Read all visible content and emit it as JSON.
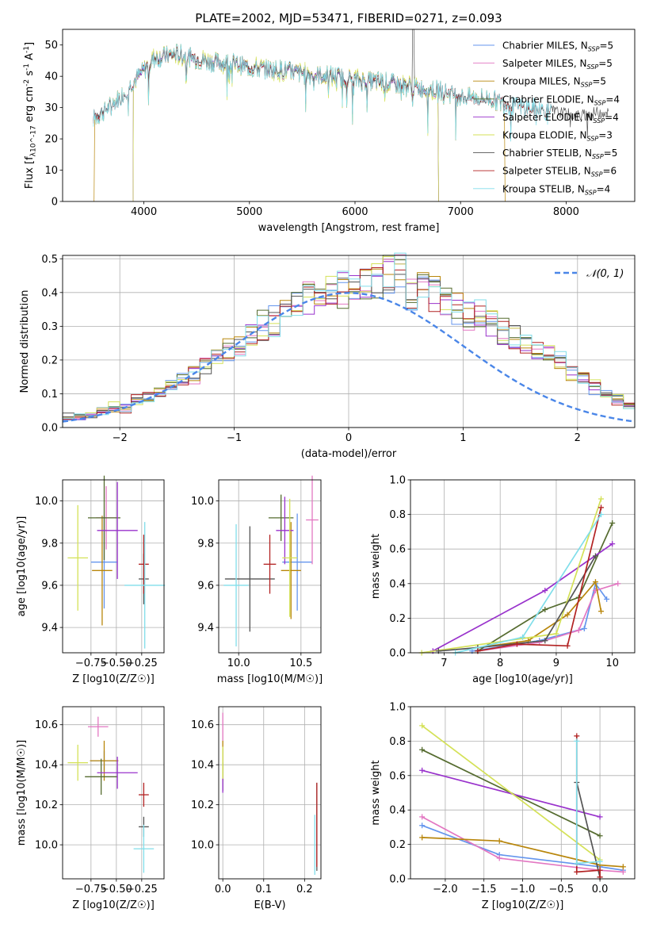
{
  "series_colors": [
    "#6495ed",
    "#e377c2",
    "#b8860b",
    "#556b2f",
    "#9932cc",
    "#d4e157",
    "#555555",
    "#b22222",
    "#80deea"
  ],
  "chart_data": [
    {
      "id": "spectrum",
      "type": "line",
      "title": "PLATE=2002, MJD=53471, FIBERID=0271, z=0.093",
      "xlabel": "wavelength [Angstrom, rest frame]",
      "ylabel": "Flux [f_λ10^-17 erg cm^-2 s^-1 A^-1]",
      "xlim": [
        3230,
        8650
      ],
      "ylim": [
        0,
        55
      ],
      "xticks": [
        4000,
        5000,
        6000,
        7000,
        8000
      ],
      "yticks": [
        0,
        10,
        20,
        30,
        40,
        50
      ],
      "grid": false,
      "legend_position": "top-right",
      "continuum_x": [
        3500,
        3800,
        4000,
        4100,
        4300,
        4600,
        5000,
        5500,
        6000,
        6500,
        7000,
        7500,
        7900
      ],
      "continuum_y": [
        26,
        34,
        42,
        46,
        47,
        45,
        43,
        41,
        39,
        37,
        34,
        31,
        28
      ],
      "series": [
        {
          "name": "Chabrier MILES",
          "nssp": "5",
          "start": 3530,
          "end": 7420,
          "dropout": false
        },
        {
          "name": "Salpeter MILES",
          "nssp": "5",
          "start": 3530,
          "end": 7420,
          "dropout": false
        },
        {
          "name": "Kroupa MILES",
          "nssp": "5",
          "start": 3530,
          "end": 7420,
          "dropout": true
        },
        {
          "name": "Chabrier ELODIE",
          "nssp": "4",
          "start": 3900,
          "end": 6790,
          "dropout": true
        },
        {
          "name": "Salpeter ELODIE",
          "nssp": "4",
          "start": 3900,
          "end": 6790,
          "dropout": true
        },
        {
          "name": "Kroupa ELODIE",
          "nssp": "3",
          "start": 3900,
          "end": 6790,
          "dropout": true
        },
        {
          "name": "Chabrier STELIB",
          "nssp": "5",
          "start": 3520,
          "end": 8400,
          "dropout": false
        },
        {
          "name": "Salpeter STELIB",
          "nssp": "6",
          "start": 3520,
          "end": 7860,
          "dropout": false
        },
        {
          "name": "Kroupa STELIB",
          "nssp": "4",
          "start": 3520,
          "end": 7860,
          "dropout": false
        }
      ]
    },
    {
      "id": "residuals",
      "type": "bar",
      "xlabel": "(data-model)/error",
      "ylabel": "Normed distribution",
      "xlim": [
        -2.5,
        2.5
      ],
      "ylim": [
        0,
        0.51
      ],
      "xticks": [
        -2,
        -1,
        0,
        1,
        2
      ],
      "yticks": [
        0.0,
        0.1,
        0.2,
        0.3,
        0.4,
        0.5
      ],
      "grid": true,
      "bin_width": 0.1,
      "legend_position": "top-right",
      "legend_label": "𝒩(0, 1)",
      "overall_values": [
        0.03,
        0.03,
        0.04,
        0.05,
        0.06,
        0.06,
        0.08,
        0.09,
        0.1,
        0.12,
        0.14,
        0.16,
        0.19,
        0.21,
        0.23,
        0.25,
        0.27,
        0.3,
        0.32,
        0.34,
        0.36,
        0.38,
        0.39,
        0.4,
        0.41,
        0.42,
        0.43,
        0.44,
        0.45,
        0.45,
        0.4,
        0.42,
        0.4,
        0.38,
        0.36,
        0.34,
        0.33,
        0.31,
        0.29,
        0.27,
        0.25,
        0.23,
        0.21,
        0.19,
        0.16,
        0.14,
        0.12,
        0.1,
        0.08,
        0.06
      ]
    },
    {
      "id": "z-age",
      "type": "scatter",
      "xlabel": "Z [log10(Z/Z☉)]",
      "ylabel": "age  [log10(age/yr)]",
      "xlim": [
        -1.03,
        -0.03
      ],
      "ylim": [
        9.28,
        10.1
      ],
      "xticks": [
        -0.75,
        -0.5,
        -0.25
      ],
      "xticklabels": [
        "−0.75",
        "−0.50",
        "−0.25"
      ],
      "yticks": [
        9.4,
        9.6,
        9.8,
        10.0
      ],
      "grid": true,
      "points": [
        {
          "x": -0.62,
          "y": 9.71,
          "xerr": 0.13,
          "yerr": 0.22,
          "series": 0
        },
        {
          "x": -0.6,
          "y": 9.92,
          "xerr": 0.1,
          "yerr": 0.15,
          "series": 1
        },
        {
          "x": -0.64,
          "y": 9.67,
          "xerr": 0.1,
          "yerr": 0.26,
          "series": 2
        },
        {
          "x": -0.62,
          "y": 9.92,
          "xerr": 0.16,
          "yerr": 0.2,
          "series": 3
        },
        {
          "x": -0.49,
          "y": 9.86,
          "xerr": 0.2,
          "yerr": 0.23,
          "series": 4
        },
        {
          "x": -0.88,
          "y": 9.73,
          "xerr": 0.1,
          "yerr": 0.25,
          "series": 5
        },
        {
          "x": -0.23,
          "y": 9.63,
          "xerr": 0.05,
          "yerr": 0.12,
          "series": 6
        },
        {
          "x": -0.23,
          "y": 9.7,
          "xerr": 0.05,
          "yerr": 0.14,
          "series": 7
        },
        {
          "x": -0.22,
          "y": 9.6,
          "xerr": 0.2,
          "yerr": 0.3,
          "series": 8
        }
      ]
    },
    {
      "id": "mass-age",
      "type": "scatter",
      "xlabel": "mass [log10(M/M☉)]",
      "ylabel": "",
      "xlim": [
        9.84,
        10.66
      ],
      "ylim": [
        9.28,
        10.1
      ],
      "xticks": [
        10.0,
        10.5
      ],
      "xticklabels": [
        "10.0",
        "10.5"
      ],
      "yticks": [
        9.4,
        9.6,
        9.8,
        10.0
      ],
      "grid": true,
      "points": [
        {
          "x": 10.47,
          "y": 9.71,
          "xerr": 0.12,
          "yerr": 0.23,
          "series": 0
        },
        {
          "x": 10.59,
          "y": 9.91,
          "xerr": 0.05,
          "yerr": 0.21,
          "series": 1
        },
        {
          "x": 10.42,
          "y": 9.67,
          "xerr": 0.08,
          "yerr": 0.23,
          "series": 2
        },
        {
          "x": 10.34,
          "y": 9.92,
          "xerr": 0.1,
          "yerr": 0.11,
          "series": 3
        },
        {
          "x": 10.37,
          "y": 9.86,
          "xerr": 0.07,
          "yerr": 0.16,
          "series": 4
        },
        {
          "x": 10.41,
          "y": 9.73,
          "xerr": 0.06,
          "yerr": 0.28,
          "series": 5
        },
        {
          "x": 10.09,
          "y": 9.63,
          "xerr": 0.2,
          "yerr": 0.25,
          "series": 6
        },
        {
          "x": 10.25,
          "y": 9.7,
          "xerr": 0.05,
          "yerr": 0.14,
          "series": 7
        },
        {
          "x": 9.98,
          "y": 9.6,
          "xerr": 0.1,
          "yerr": 0.29,
          "series": 8
        }
      ]
    },
    {
      "id": "age-weight",
      "type": "line",
      "xlabel": "age  [log10(age/yr)]",
      "ylabel": "mass weight",
      "xlim": [
        6.4,
        10.4
      ],
      "ylim": [
        0,
        1.0
      ],
      "xticks": [
        7,
        8,
        9,
        10
      ],
      "yticks": [
        0.0,
        0.2,
        0.4,
        0.6,
        0.8,
        1.0
      ],
      "grid": true,
      "series": [
        {
          "series": 0,
          "x": [
            7.5,
            8.7,
            9.5,
            9.7,
            9.9
          ],
          "y": [
            0.01,
            0.07,
            0.14,
            0.4,
            0.31
          ]
        },
        {
          "series": 1,
          "x": [
            7.6,
            8.7,
            9.4,
            9.7,
            10.1
          ],
          "y": [
            0.01,
            0.06,
            0.13,
            0.36,
            0.4
          ]
        },
        {
          "series": 2,
          "x": [
            7.6,
            8.5,
            9.2,
            9.7,
            9.8
          ],
          "y": [
            0.03,
            0.07,
            0.22,
            0.41,
            0.24
          ]
        },
        {
          "series": 3,
          "x": [
            7.6,
            8.8,
            9.4,
            10.0
          ],
          "y": [
            0.01,
            0.25,
            0.32,
            0.75
          ]
        },
        {
          "series": 4,
          "x": [
            6.8,
            8.8,
            10.0
          ],
          "y": [
            0.01,
            0.36,
            0.63
          ]
        },
        {
          "series": 5,
          "x": [
            6.6,
            9.0,
            9.8
          ],
          "y": [
            0.0,
            0.11,
            0.89
          ]
        },
        {
          "series": 6,
          "x": [
            6.9,
            7.6,
            8.8,
            9.7
          ],
          "y": [
            0.01,
            0.03,
            0.07,
            0.56
          ]
        },
        {
          "series": 7,
          "x": [
            7.6,
            8.3,
            9.2,
            9.8
          ],
          "y": [
            0.01,
            0.05,
            0.04,
            0.84
          ]
        },
        {
          "series": 8,
          "x": [
            7.2,
            8.4,
            9.8
          ],
          "y": [
            0.0,
            0.09,
            0.8
          ]
        }
      ]
    },
    {
      "id": "z-mass",
      "type": "scatter",
      "xlabel": "Z [log10(Z/Z☉)]",
      "ylabel": "mass [log10(M/M☉)]",
      "xlim": [
        -1.03,
        -0.03
      ],
      "ylim": [
        9.83,
        10.69
      ],
      "xticks": [
        -0.75,
        -0.5,
        -0.25
      ],
      "xticklabels": [
        "−0.75",
        "−0.50",
        "−0.25"
      ],
      "yticks": [
        10.0,
        10.2,
        10.4,
        10.6
      ],
      "grid": true,
      "points": [
        {
          "x": -0.62,
          "y": 10.42,
          "xerr": 0.13,
          "yerr": 0.05,
          "series": 0
        },
        {
          "x": -0.68,
          "y": 10.59,
          "xerr": 0.1,
          "yerr": 0.05,
          "series": 1
        },
        {
          "x": -0.62,
          "y": 10.42,
          "xerr": 0.14,
          "yerr": 0.1,
          "series": 2
        },
        {
          "x": -0.65,
          "y": 10.34,
          "xerr": 0.16,
          "yerr": 0.09,
          "series": 3
        },
        {
          "x": -0.49,
          "y": 10.36,
          "xerr": 0.2,
          "yerr": 0.08,
          "series": 4
        },
        {
          "x": -0.88,
          "y": 10.41,
          "xerr": 0.1,
          "yerr": 0.09,
          "series": 5
        },
        {
          "x": -0.23,
          "y": 10.09,
          "xerr": 0.05,
          "yerr": 0.05,
          "series": 6
        },
        {
          "x": -0.23,
          "y": 10.25,
          "xerr": 0.05,
          "yerr": 0.06,
          "series": 7
        },
        {
          "x": -0.23,
          "y": 9.98,
          "xerr": 0.1,
          "yerr": 0.12,
          "series": 8
        }
      ]
    },
    {
      "id": "ebv-mass",
      "type": "scatter",
      "xlabel": "E(B-V)",
      "ylabel": "",
      "xlim": [
        -0.01,
        0.24
      ],
      "ylim": [
        9.83,
        10.69
      ],
      "xticks": [
        0.0,
        0.1,
        0.2
      ],
      "xticklabels": [
        "0.0",
        "0.1",
        "0.2"
      ],
      "yticks": [
        10.0,
        10.2,
        10.4,
        10.6
      ],
      "grid": true,
      "points": [
        {
          "x": 0.0,
          "y": 10.42,
          "xerr": 0.0,
          "yerr": 0.06,
          "series": 0
        },
        {
          "x": 0.0,
          "y": 10.59,
          "xerr": 0.0,
          "yerr": 0.07,
          "series": 1
        },
        {
          "x": 0.0,
          "y": 10.42,
          "xerr": 0.0,
          "yerr": 0.1,
          "series": 2
        },
        {
          "x": 0.0,
          "y": 10.34,
          "xerr": 0.0,
          "yerr": 0.07,
          "series": 3
        },
        {
          "x": 0.0,
          "y": 10.3,
          "xerr": 0.0,
          "yerr": 0.04,
          "series": 4
        },
        {
          "x": 0.0,
          "y": 10.41,
          "xerr": 0.0,
          "yerr": 0.08,
          "series": 5
        },
        {
          "x": 0.23,
          "y": 10.09,
          "xerr": 0.0,
          "yerr": 0.22,
          "series": 6
        },
        {
          "x": 0.23,
          "y": 10.1,
          "xerr": 0.0,
          "yerr": 0.21,
          "series": 7
        },
        {
          "x": 0.225,
          "y": 10.0,
          "xerr": 0.0,
          "yerr": 0.15,
          "series": 8
        }
      ]
    },
    {
      "id": "z-weight",
      "type": "line",
      "xlabel": "Z [log10(Z/Z☉)]",
      "ylabel": "mass weight",
      "xlim": [
        -2.45,
        0.45
      ],
      "ylim": [
        0,
        1.0
      ],
      "xticks": [
        -2.0,
        -1.5,
        -1.0,
        -0.5,
        0.0
      ],
      "xticklabels": [
        "−2.0",
        "−1.5",
        "−1.0",
        "−0.5",
        "0.0"
      ],
      "yticks": [
        0.0,
        0.2,
        0.4,
        0.6,
        0.8,
        1.0
      ],
      "grid": true,
      "series": [
        {
          "series": 0,
          "x": [
            -2.3,
            -1.3,
            0.0,
            0.3
          ],
          "y": [
            0.31,
            0.14,
            0.07,
            0.05
          ]
        },
        {
          "series": 1,
          "x": [
            -2.3,
            -1.3,
            0.0,
            0.3
          ],
          "y": [
            0.36,
            0.12,
            0.05,
            0.04
          ]
        },
        {
          "series": 2,
          "x": [
            -2.3,
            -1.3,
            0.0,
            0.3
          ],
          "y": [
            0.24,
            0.22,
            0.08,
            0.07
          ]
        },
        {
          "series": 3,
          "x": [
            -2.3,
            0.0
          ],
          "y": [
            0.75,
            0.25
          ]
        },
        {
          "series": 4,
          "x": [
            -2.3,
            0.0
          ],
          "y": [
            0.63,
            0.36
          ]
        },
        {
          "series": 5,
          "x": [
            -2.3,
            0.0
          ],
          "y": [
            0.89,
            0.11
          ]
        },
        {
          "series": 6,
          "x": [
            -0.3,
            0.0
          ],
          "y": [
            0.56,
            0.01
          ]
        },
        {
          "series": 7,
          "x": [
            -0.3,
            -0.3,
            0.0,
            0.0
          ],
          "y": [
            0.83,
            0.04,
            0.05,
            0.01
          ]
        },
        {
          "series": 8,
          "x": [
            -0.3,
            -0.3,
            0.0
          ],
          "y": [
            0.8,
            0.09,
            0.1
          ]
        }
      ]
    }
  ]
}
